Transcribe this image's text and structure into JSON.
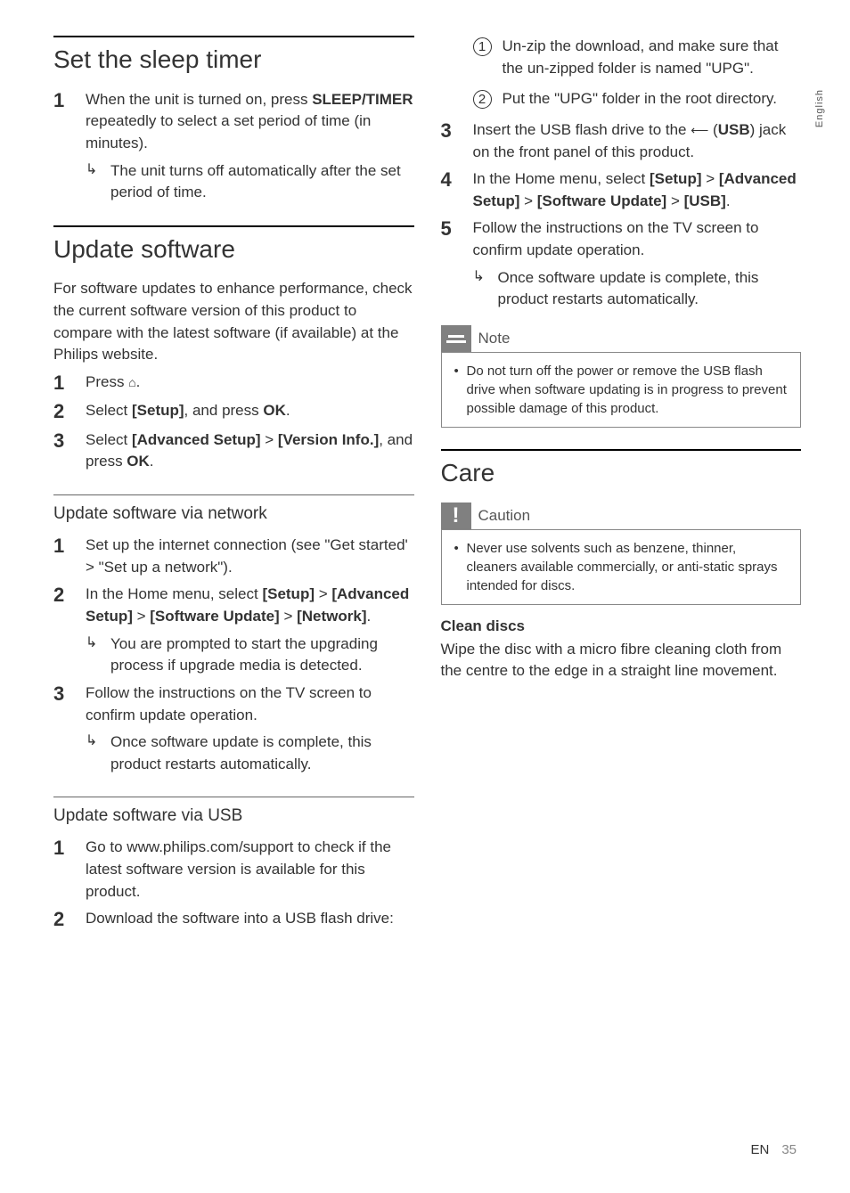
{
  "side_tab": "English",
  "footer": {
    "lang": "EN",
    "page": "35"
  },
  "left": {
    "sec1": {
      "title": "Set the sleep timer",
      "step1_pre": "When the unit is turned on, press ",
      "step1_bold": "SLEEP/TIMER",
      "step1_post": " repeatedly to select a set period of time (in minutes).",
      "bullet1": "The unit turns off automatically after the set period of time."
    },
    "sec2": {
      "title": "Update software",
      "intro": "For software updates to enhance performance, check the current software version of this product to compare with the latest software (if available) at the Philips website.",
      "step1_pre": "Press ",
      "step1_icon": "⌂",
      "step1_post": ".",
      "step2_pre": "Select ",
      "step2_b1": "[Setup]",
      "step2_mid": ", and press ",
      "step2_b2": "OK",
      "step2_post": ".",
      "step3_pre": "Select ",
      "step3_b1": "[Advanced Setup]",
      "step3_mid": " > ",
      "step3_b2": "[Version Info.]",
      "step3_mid2": ", and press ",
      "step3_b3": "OK",
      "step3_post": "."
    },
    "sub1": {
      "title": "Update software via network",
      "step1": "Set up the internet connection (see \"Get started' > \"Set up a network\").",
      "step2_pre": "In the Home menu, select ",
      "step2_b1": "[Setup]",
      "step2_m1": " > ",
      "step2_b2": "[Advanced Setup]",
      "step2_m2": " > ",
      "step2_b3": "[Software Update]",
      "step2_m3": " > ",
      "step2_b4": "[Network]",
      "step2_post": ".",
      "bullet2": "You are prompted to start the upgrading process if upgrade media is detected.",
      "step3": "Follow the instructions on the TV screen to confirm update operation.",
      "bullet3": "Once software update is complete, this product restarts automatically."
    },
    "sub2": {
      "title": "Update software via USB",
      "step1": "Go to www.philips.com/support to check if the latest software version is available for this product.",
      "step2": "Download the software into a USB flash drive:"
    }
  },
  "right": {
    "circ1": "Un-zip the download, and make sure that the un-zipped folder is named \"UPG\".",
    "circ2": "Put the \"UPG\" folder in the root directory.",
    "step3_pre": "Insert the USB flash drive to the ",
    "step3_usb": "⟵",
    "step3_mid": " (",
    "step3_b1": "USB",
    "step3_post": ") jack on the front panel of this product.",
    "step4_pre": "In the Home menu, select ",
    "step4_b1": "[Setup]",
    "step4_m1": " > ",
    "step4_b2": "[Advanced Setup]",
    "step4_m2": " > ",
    "step4_b3": "[Software Update]",
    "step4_m3": " > ",
    "step4_b4": "[USB]",
    "step4_post": ".",
    "step5": "Follow the instructions on the TV screen to confirm update operation.",
    "bullet5": "Once software update is complete, this product restarts automatically.",
    "note_label": "Note",
    "note_text": "Do not turn off the power or remove the USB flash drive when software updating is in progress to prevent possible damage of this product.",
    "care_title": "Care",
    "caution_label": "Caution",
    "caution_text": "Never use solvents such as benzene, thinner, cleaners available commercially, or anti-static sprays intended for discs.",
    "clean_head": "Clean discs",
    "clean_text": "Wipe the disc with a micro fibre cleaning cloth from the centre to the edge in a straight line movement."
  }
}
